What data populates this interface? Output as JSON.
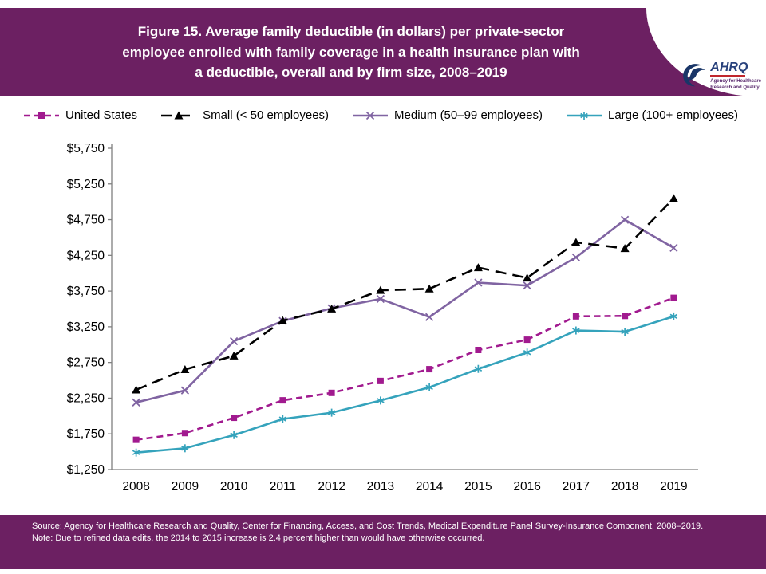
{
  "header": {
    "title": "Figure 15. Average family deductible (in dollars) per private-sector\nemployee enrolled with family coverage in a health insurance plan with\na deductible, overall and by firm size, 2008–2019",
    "logo": {
      "acronym": "AHRQ",
      "tagline": "Agency for Healthcare\nResearch and Quality"
    }
  },
  "footer": {
    "source": "Source: Agency for Healthcare Research and Quality, Center for Financing, Access, and Cost Trends, Medical Expenditure Panel Survey-Insurance Component, 2008–2019.",
    "note": "Note: Due to refined data edits, the 2014 to 2015 increase is 2.4 percent higher than would have otherwise occurred."
  },
  "chart_data": {
    "type": "line",
    "title": "Figure 15. Average family deductible (in dollars) per private-sector employee enrolled with family coverage in a health insurance plan with a deductible, overall and by firm size, 2008–2019",
    "xlabel": "",
    "ylabel": "",
    "grid": false,
    "legend_position": "top",
    "x": [
      "2008",
      "2009",
      "2010",
      "2011",
      "2012",
      "2013",
      "2014",
      "2015",
      "2016",
      "2017",
      "2018",
      "2019"
    ],
    "ylim": [
      1250,
      5750
    ],
    "ytick_step": 500,
    "yticks": [
      "$1,250",
      "$1,750",
      "$2,250",
      "$2,750",
      "$3,250",
      "$3,750",
      "$4,250",
      "$4,750",
      "$5,250",
      "$5,750"
    ],
    "series": [
      {
        "name": "United States",
        "color": "#a11a8f",
        "marker": "square",
        "line": "dashed",
        "values": [
          1667,
          1761,
          1975,
          2220,
          2324,
          2491,
          2656,
          2925,
          3069,
          3396,
          3402,
          3655
        ]
      },
      {
        "name": "Small (< 50 employees)",
        "color": "#000000",
        "marker": "triangle",
        "line": "long-dash",
        "values": [
          2367,
          2652,
          2843,
          3337,
          3501,
          3761,
          3782,
          4079,
          3934,
          4433,
          4347,
          5048
        ]
      },
      {
        "name": "Medium (50–99 employees)",
        "color": "#8064a2",
        "marker": "x",
        "line": "solid",
        "values": [
          2190,
          2359,
          3048,
          3331,
          3508,
          3640,
          3386,
          3868,
          3828,
          4222,
          4748,
          4356
        ]
      },
      {
        "name": "Large (100+ employees)",
        "color": "#35a3bc",
        "marker": "asterisk",
        "line": "solid",
        "values": [
          1488,
          1548,
          1733,
          1958,
          2047,
          2217,
          2401,
          2660,
          2889,
          3198,
          3181,
          3395
        ]
      }
    ]
  }
}
